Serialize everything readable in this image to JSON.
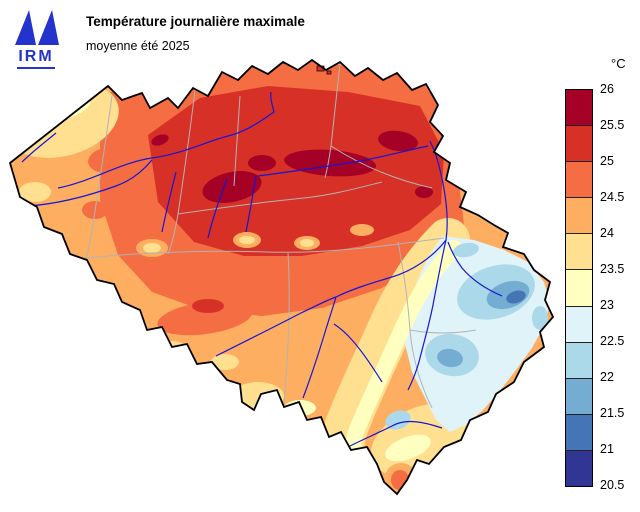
{
  "header": {
    "logo_text": "IRM",
    "brand_color": "#2433cc",
    "title": "Température journalière maximale",
    "subtitle": "moyenne été 2025"
  },
  "legend": {
    "unit": "°C",
    "ticks": [
      "26",
      "25.5",
      "25",
      "24.5",
      "24",
      "23.5",
      "23",
      "22.5",
      "22",
      "21.5",
      "21",
      "20.5"
    ],
    "bands": [
      {
        "range": "25.5–26",
        "color": "#a50026"
      },
      {
        "range": "25–25.5",
        "color": "#d73027"
      },
      {
        "range": "24.5–25",
        "color": "#f46d43"
      },
      {
        "range": "24–24.5",
        "color": "#fdae61"
      },
      {
        "range": "23.5–24",
        "color": "#fee090"
      },
      {
        "range": "23–23.5",
        "color": "#ffffbf"
      },
      {
        "range": "22.5–23",
        "color": "#e0f3f8"
      },
      {
        "range": "22–22.5",
        "color": "#abd9e9"
      },
      {
        "range": "21.5–22",
        "color": "#74add1"
      },
      {
        "range": "21–21.5",
        "color": "#4575b4"
      },
      {
        "range": "20.5–21",
        "color": "#313695"
      }
    ]
  },
  "map": {
    "depicts": "Belgium — contoured mean daily maximum temperature, summer 2025",
    "colors": {
      "river": "#1616d6",
      "province_border": "#b3b3b3",
      "country_border": "#000000"
    }
  }
}
